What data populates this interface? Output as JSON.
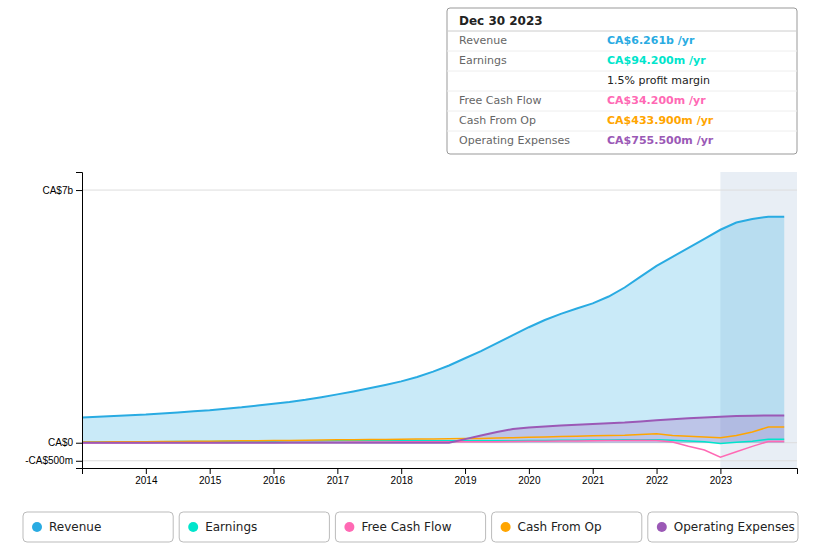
{
  "chart_data": {
    "type": "line",
    "x": [
      2013,
      2013.25,
      2013.5,
      2013.75,
      2014,
      2014.25,
      2014.5,
      2014.75,
      2015,
      2015.25,
      2015.5,
      2015.75,
      2016,
      2016.25,
      2016.5,
      2016.75,
      2017,
      2017.25,
      2017.5,
      2017.75,
      2018,
      2018.25,
      2018.5,
      2018.75,
      2019,
      2019.25,
      2019.5,
      2019.75,
      2020,
      2020.25,
      2020.5,
      2020.75,
      2021,
      2021.25,
      2021.5,
      2021.75,
      2022,
      2022.25,
      2022.5,
      2022.75,
      2023,
      2023.25,
      2023.5,
      2023.75,
      2024
    ],
    "series": [
      {
        "name": "Revenue",
        "color": "#29abe2",
        "type": "area",
        "values": [
          700,
          720,
          740,
          760,
          780,
          810,
          840,
          870,
          900,
          940,
          980,
          1030,
          1080,
          1130,
          1190,
          1260,
          1340,
          1420,
          1510,
          1600,
          1700,
          1820,
          1970,
          2140,
          2340,
          2540,
          2760,
          2980,
          3200,
          3400,
          3570,
          3720,
          3860,
          4050,
          4300,
          4600,
          4900,
          5150,
          5400,
          5650,
          5900,
          6100,
          6200,
          6261,
          6261
        ]
      },
      {
        "name": "Earnings",
        "color": "#00e5cc",
        "type": "line",
        "values": [
          20,
          22,
          24,
          26,
          28,
          30,
          32,
          34,
          36,
          38,
          40,
          42,
          44,
          46,
          48,
          50,
          52,
          54,
          55,
          56,
          58,
          60,
          58,
          56,
          54,
          52,
          55,
          58,
          62,
          65,
          68,
          72,
          75,
          78,
          80,
          82,
          85,
          70,
          50,
          30,
          -20,
          10,
          40,
          94.2,
          94.2
        ]
      },
      {
        "name": "Free Cash Flow",
        "color": "#ff69b4",
        "type": "line",
        "values": [
          -10,
          -8,
          -6,
          -5,
          -4,
          -3,
          -2,
          -1,
          0,
          2,
          4,
          6,
          8,
          10,
          12,
          14,
          16,
          18,
          20,
          22,
          24,
          30,
          28,
          26,
          24,
          26,
          30,
          34,
          38,
          42,
          46,
          50,
          55,
          60,
          65,
          70,
          60,
          20,
          -100,
          -200,
          -400,
          -250,
          -100,
          34.2,
          34.2
        ]
      },
      {
        "name": "Cash From Op",
        "color": "#ffa500",
        "type": "line",
        "values": [
          20,
          22,
          24,
          26,
          28,
          32,
          36,
          40,
          44,
          48,
          52,
          56,
          60,
          65,
          70,
          75,
          80,
          85,
          88,
          90,
          95,
          100,
          105,
          110,
          115,
          120,
          130,
          140,
          150,
          160,
          170,
          180,
          190,
          200,
          210,
          230,
          250,
          200,
          180,
          160,
          140,
          200,
          300,
          433.9,
          433.9
        ]
      },
      {
        "name": "Operating Expenses",
        "color": "#9b59b6",
        "type": "area",
        "values": [
          0,
          0,
          0,
          0,
          0,
          0,
          0,
          0,
          0,
          0,
          0,
          0,
          0,
          0,
          0,
          0,
          0,
          0,
          0,
          0,
          0,
          0,
          0,
          0,
          100,
          200,
          300,
          380,
          420,
          450,
          480,
          500,
          520,
          540,
          560,
          590,
          620,
          650,
          680,
          700,
          720,
          740,
          750,
          755.5,
          755.5
        ]
      }
    ],
    "xlim": [
      2013,
      2024.2
    ],
    "xticks": [
      2014,
      2015,
      2016,
      2017,
      2018,
      2019,
      2020,
      2021,
      2022,
      2023
    ],
    "ylim": [
      -700,
      7500
    ],
    "yticks": [
      {
        "value": -500,
        "label": "-CA$500m"
      },
      {
        "value": 0,
        "label": "CA$0"
      },
      {
        "value": 7000,
        "label": "CA$7b"
      }
    ],
    "grid": true,
    "legend": "bottom",
    "highlight": [
      2023,
      2024.2
    ],
    "tooltip": {
      "title": "Dec 30 2023",
      "rows": [
        {
          "label": "Revenue",
          "value": "CA$6.261b /yr"
        },
        {
          "label": "Earnings",
          "value": "CA$94.200m /yr"
        },
        {
          "value": "1.5% profit margin"
        },
        {
          "label": "Free Cash Flow",
          "value": "CA$34.200m /yr"
        },
        {
          "label": "Cash From Op",
          "value": "CA$433.900m /yr"
        },
        {
          "label": "Operating Expenses",
          "value": "CA$755.500m /yr"
        }
      ]
    }
  }
}
